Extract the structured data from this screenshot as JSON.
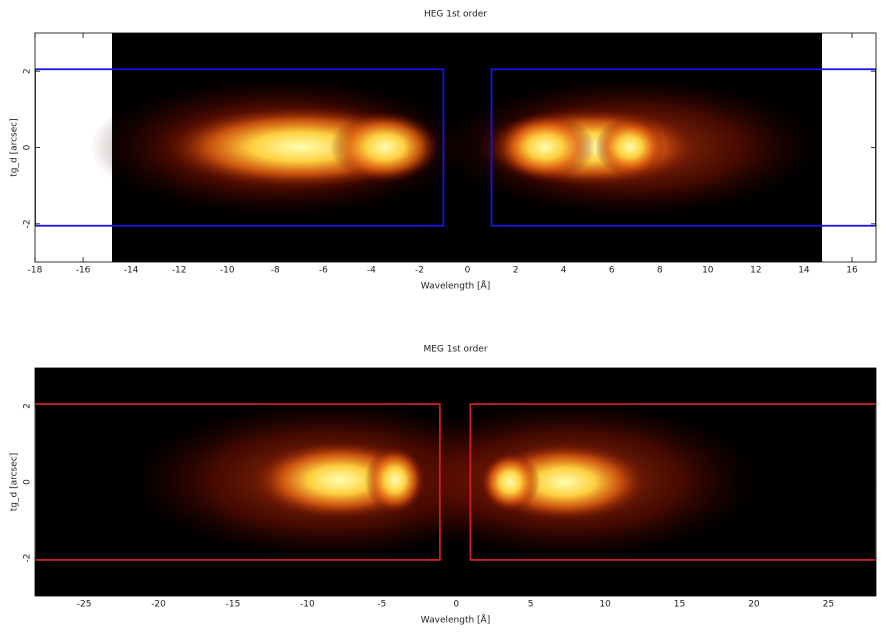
{
  "chart_data": [
    {
      "type": "heatmap",
      "title": "HEG 1st order",
      "x_label": "Wavelength [Å]",
      "y_label": "tg_d [arcsec]",
      "xlim": [
        -18,
        17
      ],
      "ylim": [
        -3,
        3
      ],
      "xticks": [
        -18,
        -16,
        -14,
        -12,
        -10,
        -8,
        -6,
        -4,
        -2,
        0,
        2,
        4,
        6,
        8,
        10,
        12,
        14,
        16
      ],
      "yticks": [
        -2,
        0,
        2
      ],
      "region_color": "#1414e6",
      "regions": [
        {
          "x": [
            -18,
            -1
          ],
          "y": [
            -2.05,
            2.05
          ]
        },
        {
          "x": [
            1,
            17
          ],
          "y": [
            -2.05,
            2.05
          ]
        }
      ]
    },
    {
      "type": "heatmap",
      "title": "MEG 1st order",
      "x_label": "Wavelength [Å]",
      "y_label": "tg_d [arcsec]",
      "xlim": [
        -28.3,
        28.2
      ],
      "ylim": [
        -3,
        3
      ],
      "xticks": [
        -25,
        -20,
        -15,
        -10,
        -5,
        0,
        5,
        10,
        15,
        20,
        25
      ],
      "yticks": [
        -2,
        0,
        2
      ],
      "region_color": "#cc2020",
      "regions": [
        {
          "x": [
            -28.3,
            -1.1
          ],
          "y": [
            -2.05,
            2.05
          ]
        },
        {
          "x": [
            0.95,
            28.2
          ],
          "y": [
            -2.05,
            2.05
          ]
        }
      ]
    }
  ]
}
